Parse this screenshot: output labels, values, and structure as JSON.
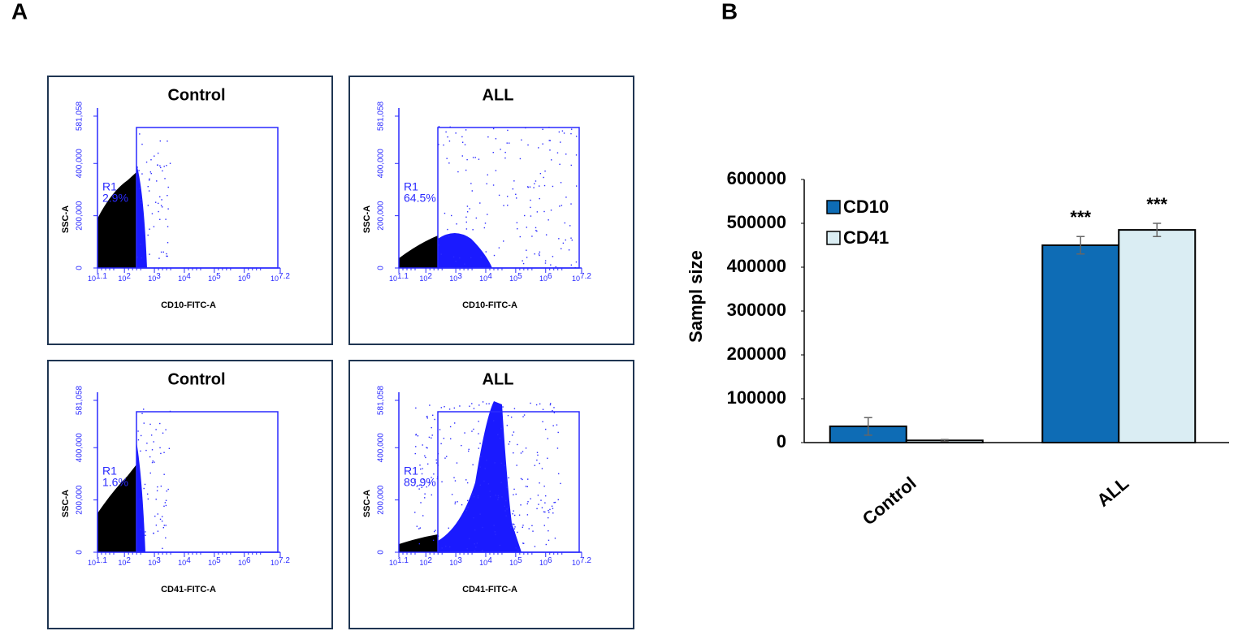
{
  "panels": [
    "A",
    "B"
  ],
  "chart_data": [
    {
      "type": "scatter",
      "title": "Control",
      "xlabel": "CD10-FITC-A",
      "ylabel": "SSC-A",
      "xlim": [
        1.1,
        7.2
      ],
      "xtick_base": "10",
      "xticks": [
        1.1,
        2,
        3,
        4,
        5,
        6,
        7.2
      ],
      "ylim": [
        0,
        581058
      ],
      "yticks": [
        0,
        {
          "value": 200000,
          "label": "200,000"
        },
        {
          "value": 400000,
          "label": "400,000"
        },
        {
          "value": 581058,
          "label": "581,058"
        }
      ],
      "gate_name": "R1",
      "values": [
        2.9
      ],
      "value_labels": [
        "2.9%"
      ]
    },
    {
      "type": "scatter",
      "title": "ALL",
      "xlabel": "CD10-FITC-A",
      "ylabel": "SSC-A",
      "xlim": [
        1.1,
        7.2
      ],
      "xtick_base": "10",
      "xticks": [
        1.1,
        2,
        3,
        4,
        5,
        6,
        7.2
      ],
      "ylim": [
        0,
        581058
      ],
      "yticks": [
        0,
        {
          "value": 200000,
          "label": "200,000"
        },
        {
          "value": 400000,
          "label": "400,000"
        },
        {
          "value": 581058,
          "label": "581,058"
        }
      ],
      "gate_name": "R1",
      "values": [
        64.5
      ],
      "value_labels": [
        "64.5%"
      ]
    },
    {
      "type": "scatter",
      "title": "Control",
      "xlabel": "CD41-FITC-A",
      "ylabel": "SSC-A",
      "xlim": [
        1.1,
        7.2
      ],
      "xtick_base": "10",
      "xticks": [
        1.1,
        2,
        3,
        4,
        5,
        6,
        7.2
      ],
      "ylim": [
        0,
        581058
      ],
      "yticks": [
        0,
        {
          "value": 200000,
          "label": "200,000"
        },
        {
          "value": 400000,
          "label": "400,000"
        },
        {
          "value": 581058,
          "label": "581,058"
        }
      ],
      "gate_name": "R1",
      "values": [
        1.6
      ],
      "value_labels": [
        "1.6%"
      ]
    },
    {
      "type": "scatter",
      "title": "ALL",
      "xlabel": "CD41-FITC-A",
      "ylabel": "SSC-A",
      "xlim": [
        1.1,
        7.2
      ],
      "xtick_base": "10",
      "xticks": [
        1.1,
        2,
        3,
        4,
        5,
        6,
        7.2
      ],
      "ylim": [
        0,
        581058
      ],
      "yticks": [
        0,
        {
          "value": 200000,
          "label": "200,000"
        },
        {
          "value": 400000,
          "label": "400,000"
        },
        {
          "value": 581058,
          "label": "581,058"
        }
      ],
      "gate_name": "R1",
      "values": [
        89.9
      ],
      "value_labels": [
        "89.9%"
      ]
    },
    {
      "type": "bar",
      "ylabel": "Sampl size",
      "categories": [
        "Control",
        "ALL"
      ],
      "series": [
        {
          "name": "CD10",
          "color": "#0e6cb5",
          "values": [
            37000,
            450000
          ],
          "errors": [
            20000,
            20000
          ],
          "significance": [
            null,
            "***"
          ]
        },
        {
          "name": "CD41",
          "color": "#daedf3",
          "values": [
            5000,
            485000
          ],
          "errors": [
            2000,
            15000
          ],
          "significance": [
            null,
            "***"
          ]
        }
      ],
      "ylim": [
        0,
        600000
      ],
      "yticks": [
        0,
        100000,
        200000,
        300000,
        400000,
        500000,
        600000
      ],
      "legend": "upper left"
    }
  ]
}
